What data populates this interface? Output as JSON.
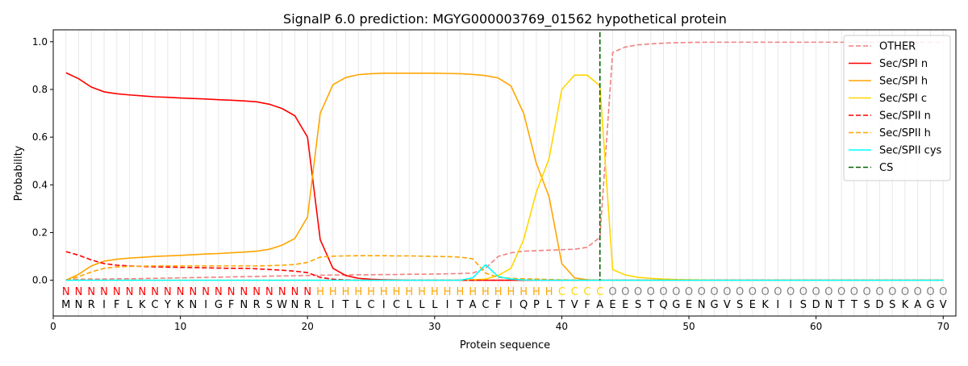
{
  "chart_data": {
    "type": "line",
    "title": "SignalP 6.0 prediction: MGYG000003769_01562 hypothetical protein",
    "xlabel": "Protein sequence",
    "ylabel": "Probability",
    "xlim": [
      0,
      71
    ],
    "ylim": [
      -0.15,
      1.05
    ],
    "xticks": [
      0,
      10,
      20,
      30,
      40,
      50,
      60,
      70
    ],
    "yticks": [
      0.0,
      0.2,
      0.4,
      0.6,
      0.8,
      1.0
    ],
    "legend_position": "top-right",
    "sequence": "MNRIFLKCYKNIGFNRSWNRLITLCICLLLITACFIQPLTVFAEESTQGENGVSEKIISDNTTSDSKAGV",
    "labels": "NNNNNNNNNNNNNNNNNNNNHHHHHHHHHHHHHHHHHHHCCCCOOOOOOOOOOOOOOOOOOOOOOOOOOO",
    "label_colors": {
      "N": "#ff0000",
      "H": "#ffa500",
      "C": "#ffd700",
      "O": "#808080"
    },
    "cs_position": 43,
    "series": [
      {
        "name": "OTHER",
        "color": "#f08080",
        "dash": true,
        "values": [
          0.003,
          0.004,
          0.005,
          0.005,
          0.006,
          0.006,
          0.007,
          0.008,
          0.009,
          0.01,
          0.011,
          0.012,
          0.013,
          0.014,
          0.015,
          0.016,
          0.017,
          0.018,
          0.019,
          0.02,
          0.021,
          0.022,
          0.022,
          0.023,
          0.023,
          0.024,
          0.024,
          0.025,
          0.025,
          0.026,
          0.027,
          0.028,
          0.03,
          0.05,
          0.1,
          0.115,
          0.122,
          0.124,
          0.126,
          0.128,
          0.13,
          0.138,
          0.18,
          0.955,
          0.978,
          0.987,
          0.991,
          0.994,
          0.996,
          0.997,
          0.998,
          0.998,
          0.998,
          0.998,
          0.998,
          0.998,
          0.998,
          0.998,
          0.998,
          0.998,
          0.998,
          0.998,
          0.998,
          0.998,
          0.998,
          0.998,
          0.998,
          0.998,
          0.998,
          0.998
        ]
      },
      {
        "name": "Sec/SPI n",
        "color": "#ff0000",
        "dash": false,
        "values": [
          0.87,
          0.845,
          0.81,
          0.79,
          0.782,
          0.777,
          0.773,
          0.769,
          0.767,
          0.764,
          0.762,
          0.76,
          0.757,
          0.755,
          0.752,
          0.748,
          0.738,
          0.72,
          0.69,
          0.6,
          0.17,
          0.05,
          0.02,
          0.008,
          0.004,
          0.002,
          0.001,
          0,
          0,
          0,
          0,
          0,
          0,
          0,
          0,
          0,
          0,
          0,
          0,
          0,
          0,
          0,
          0,
          0,
          0,
          0,
          0,
          0,
          0,
          0,
          0,
          0,
          0,
          0,
          0,
          0,
          0,
          0,
          0,
          0,
          0,
          0,
          0,
          0,
          0,
          0,
          0,
          0,
          0,
          0
        ]
      },
      {
        "name": "Sec/SPI h",
        "color": "#ffa500",
        "dash": false,
        "values": [
          0.0,
          0.025,
          0.06,
          0.08,
          0.088,
          0.093,
          0.096,
          0.1,
          0.102,
          0.104,
          0.107,
          0.11,
          0.112,
          0.115,
          0.118,
          0.122,
          0.13,
          0.147,
          0.175,
          0.265,
          0.7,
          0.82,
          0.85,
          0.862,
          0.866,
          0.868,
          0.868,
          0.868,
          0.868,
          0.868,
          0.867,
          0.866,
          0.863,
          0.858,
          0.848,
          0.815,
          0.7,
          0.49,
          0.35,
          0.07,
          0.01,
          0.002,
          0,
          0,
          0,
          0,
          0,
          0,
          0,
          0,
          0,
          0,
          0,
          0,
          0,
          0,
          0,
          0,
          0,
          0,
          0,
          0,
          0,
          0,
          0,
          0,
          0,
          0,
          0,
          0
        ]
      },
      {
        "name": "Sec/SPI c",
        "color": "#ffd700",
        "dash": false,
        "values": [
          0,
          0,
          0,
          0,
          0,
          0,
          0,
          0,
          0,
          0,
          0,
          0,
          0,
          0,
          0,
          0,
          0,
          0,
          0,
          0,
          0,
          0,
          0,
          0,
          0,
          0,
          0,
          0,
          0,
          0,
          0,
          0,
          0.002,
          0.005,
          0.02,
          0.05,
          0.17,
          0.37,
          0.51,
          0.8,
          0.86,
          0.86,
          0.815,
          0.045,
          0.022,
          0.012,
          0.008,
          0.005,
          0.003,
          0.002,
          0.001,
          0,
          0,
          0,
          0,
          0,
          0,
          0,
          0,
          0,
          0,
          0,
          0,
          0,
          0,
          0,
          0,
          0,
          0,
          0
        ]
      },
      {
        "name": "Sec/SPII n",
        "color": "#ff0000",
        "dash": true,
        "values": [
          0.12,
          0.105,
          0.085,
          0.07,
          0.063,
          0.06,
          0.058,
          0.056,
          0.055,
          0.054,
          0.053,
          0.052,
          0.051,
          0.05,
          0.05,
          0.048,
          0.045,
          0.042,
          0.038,
          0.032,
          0.012,
          0.004,
          0.001,
          0,
          0,
          0,
          0,
          0,
          0,
          0,
          0,
          0,
          0,
          0,
          0,
          0,
          0,
          0,
          0,
          0,
          0,
          0,
          0,
          0,
          0,
          0,
          0,
          0,
          0,
          0,
          0,
          0,
          0,
          0,
          0,
          0,
          0,
          0,
          0,
          0,
          0,
          0,
          0,
          0,
          0,
          0,
          0,
          0,
          0,
          0
        ]
      },
      {
        "name": "Sec/SPII h",
        "color": "#ffa500",
        "dash": true,
        "values": [
          0.0,
          0.015,
          0.035,
          0.05,
          0.056,
          0.058,
          0.059,
          0.06,
          0.06,
          0.06,
          0.06,
          0.06,
          0.06,
          0.06,
          0.06,
          0.06,
          0.061,
          0.063,
          0.066,
          0.075,
          0.097,
          0.101,
          0.102,
          0.103,
          0.103,
          0.103,
          0.102,
          0.102,
          0.101,
          0.1,
          0.099,
          0.097,
          0.09,
          0.03,
          0.012,
          0.008,
          0.006,
          0.005,
          0.003,
          0.002,
          0.001,
          0,
          0,
          0,
          0,
          0,
          0,
          0,
          0,
          0,
          0,
          0,
          0,
          0,
          0,
          0,
          0,
          0,
          0,
          0,
          0,
          0,
          0,
          0,
          0,
          0,
          0,
          0,
          0,
          0
        ]
      },
      {
        "name": "Sec/SPII cys",
        "color": "#00ffff",
        "dash": false,
        "values": [
          0,
          0,
          0,
          0,
          0,
          0,
          0,
          0,
          0,
          0,
          0,
          0,
          0,
          0,
          0,
          0,
          0,
          0,
          0,
          0,
          0,
          0,
          0,
          0,
          0,
          0,
          0,
          0,
          0,
          0,
          0,
          0,
          0.01,
          0.065,
          0.015,
          0.005,
          0.001,
          0,
          0,
          0,
          0,
          0,
          0,
          0,
          0,
          0,
          0,
          0,
          0,
          0,
          0,
          0,
          0,
          0,
          0,
          0,
          0,
          0,
          0,
          0,
          0,
          0,
          0,
          0,
          0,
          0,
          0,
          0,
          0,
          0
        ]
      },
      {
        "name": "CS",
        "color": "#006400",
        "dash": true,
        "values": []
      }
    ]
  }
}
